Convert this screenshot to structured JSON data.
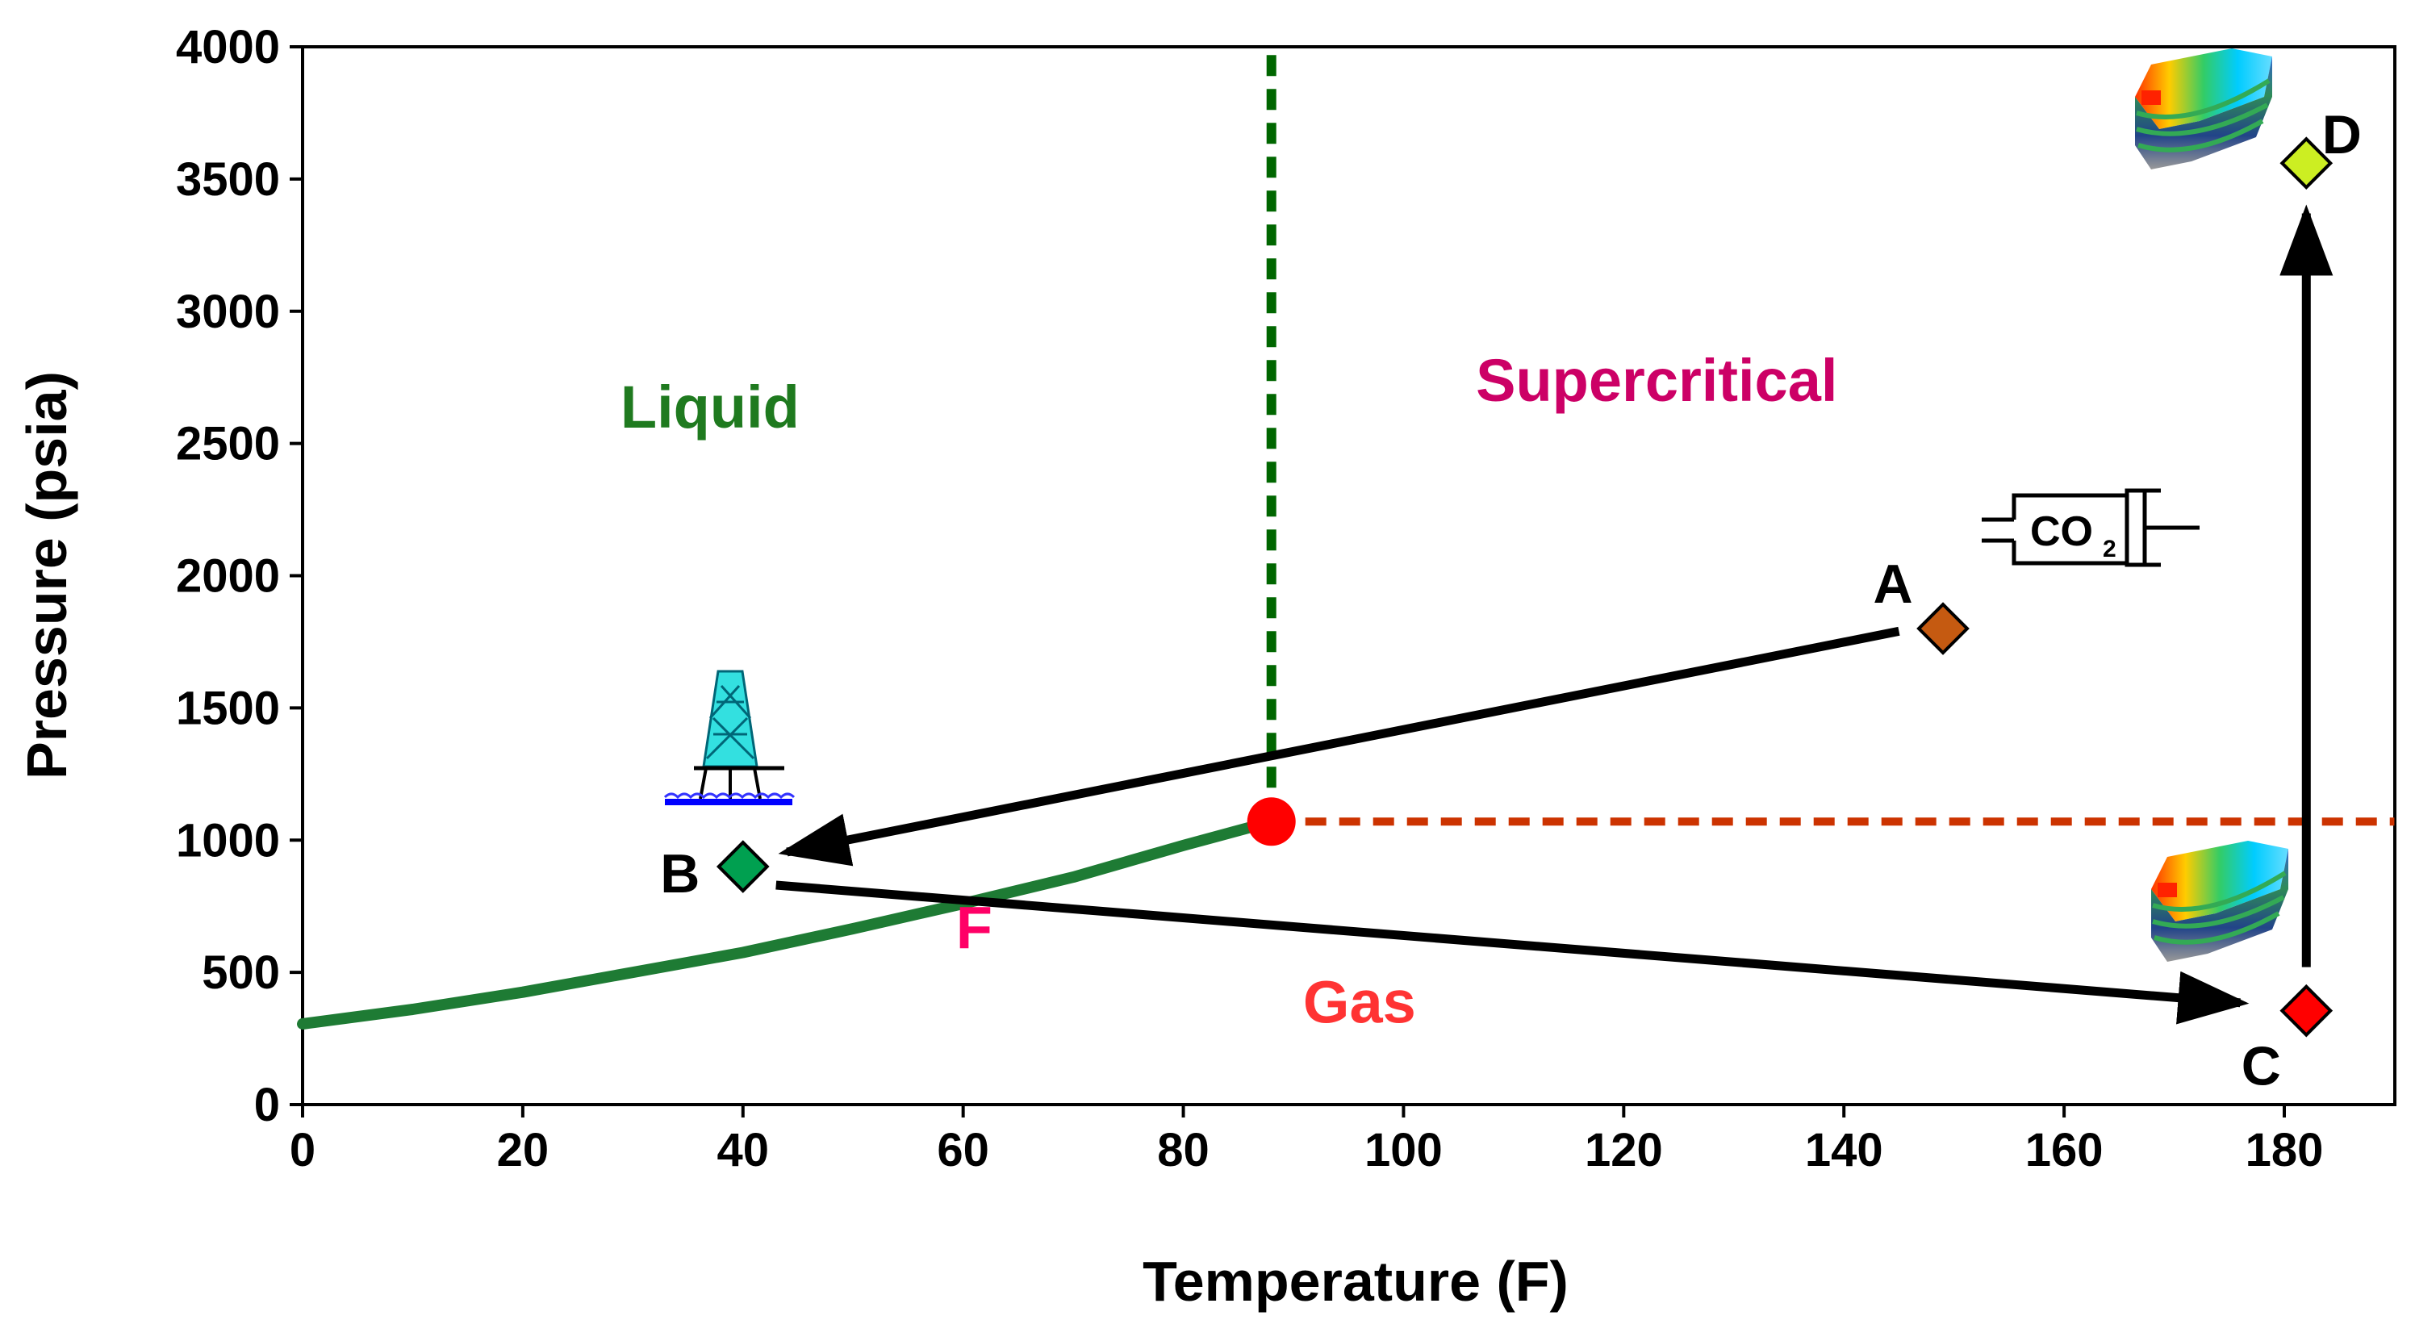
{
  "chart_data": {
    "type": "scatter",
    "title": "",
    "xlabel": "Temperature (F)",
    "ylabel": "Pressure (psia)",
    "xlim": [
      0,
      190
    ],
    "ylim": [
      0,
      4000
    ],
    "x_ticks": [
      0,
      20,
      40,
      60,
      80,
      100,
      120,
      140,
      160,
      180
    ],
    "y_ticks": [
      0,
      500,
      1000,
      1500,
      2000,
      2500,
      3000,
      3500,
      4000
    ],
    "grid": false,
    "critical_point": {
      "x": 88,
      "y": 1070,
      "color": "#ff0000"
    },
    "critical_temperature_line": {
      "x": 88,
      "y_from": 1070,
      "y_to": 4000,
      "color": "#006600",
      "style": "dashed"
    },
    "critical_pressure_line": {
      "y": 1070,
      "x_from": 88,
      "x_to": 190,
      "color": "#cc3300",
      "style": "dashed"
    },
    "saturation_curve": {
      "name": "vapor pressure curve",
      "color": "#1e7b34",
      "x": [
        0,
        10,
        20,
        30,
        40,
        50,
        60,
        70,
        80,
        88
      ],
      "y": [
        305,
        360,
        425,
        500,
        575,
        665,
        760,
        860,
        980,
        1070
      ]
    },
    "points": [
      {
        "label": "A",
        "x": 149,
        "y": 1800,
        "color": "#c55a11"
      },
      {
        "label": "B",
        "x": 40,
        "y": 900,
        "color": "#00a050"
      },
      {
        "label": "C",
        "x": 182,
        "y": 355,
        "color": "#ff0000"
      },
      {
        "label": "D",
        "x": 182,
        "y": 3560,
        "color": "#ccee22"
      }
    ],
    "arrows": [
      {
        "from": [
          145,
          1790
        ],
        "to": [
          44,
          955
        ]
      },
      {
        "from": [
          43,
          830
        ],
        "to": [
          176,
          385
        ]
      },
      {
        "from": [
          182,
          520
        ],
        "to": [
          182,
          3370
        ]
      }
    ],
    "regions": [
      {
        "label": "Liquid",
        "x": 37,
        "y": 2560,
        "color": "#1f7a1f"
      },
      {
        "label": "Supercritical",
        "x": 123,
        "y": 2660,
        "color": "#cc0066"
      },
      {
        "label": "Gas",
        "x": 96,
        "y": 310,
        "color": "#ff3333"
      },
      {
        "label": "F",
        "x": 61,
        "y": 590,
        "color": "#ff0066"
      }
    ],
    "annotations": {
      "co2_label": "CO",
      "co2_subscript": "2"
    }
  }
}
